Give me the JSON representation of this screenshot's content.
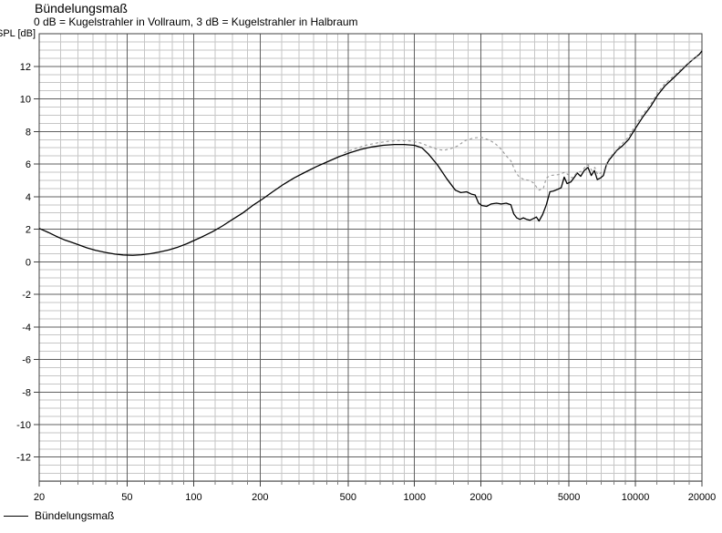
{
  "header": {
    "title": "Bündelungsmaß",
    "subtitle": "0 dB = Kugelstrahler in Vollraum, 3 dB = Kugelstrahler in Halbraum"
  },
  "y_axis_label": "SPL [dB]",
  "legend": {
    "items": [
      {
        "label": "Bündelungsmaß",
        "line_style": "solid",
        "color": "#000000"
      }
    ]
  },
  "colors": {
    "background": "#ffffff",
    "minor_grid": "#c6c6c6",
    "major_grid": "#606060",
    "plot_border": "#404040",
    "text": "#000000",
    "solid_curve": "#000000",
    "dashed_curve": "#999999"
  },
  "chart_data": {
    "type": "line",
    "title": "Bündelungsmaß",
    "subtitle": "0 dB = Kugelstrahler in Vollraum, 3 dB = Kugelstrahler in Halbraum",
    "xlabel": "",
    "ylabel": "SPL [dB]",
    "x_scale": "log",
    "xlim": [
      20,
      20000
    ],
    "ylim": [
      -13.5,
      14
    ],
    "grid": "on",
    "legend_position": "bottom-left",
    "x_tick_labels": [
      "20",
      "50",
      "100",
      "200",
      "500",
      "1000",
      "2000",
      "5000",
      "10000",
      "20000"
    ],
    "x_ticks": [
      20,
      50,
      100,
      200,
      500,
      1000,
      2000,
      5000,
      10000,
      20000
    ],
    "y_ticks": [
      12,
      10,
      8,
      6,
      4,
      2,
      0,
      -2,
      -4,
      -6,
      -8,
      -10,
      -12
    ],
    "y_major_step": 2,
    "y_minor_step": 0.5,
    "series": [
      {
        "name": "Bündelungsmaß",
        "line": "solid",
        "color": "#000000",
        "points": [
          [
            20,
            2.05
          ],
          [
            22,
            1.8
          ],
          [
            24,
            1.55
          ],
          [
            26,
            1.35
          ],
          [
            28,
            1.2
          ],
          [
            30,
            1.05
          ],
          [
            33,
            0.85
          ],
          [
            36,
            0.7
          ],
          [
            40,
            0.57
          ],
          [
            44,
            0.47
          ],
          [
            48,
            0.42
          ],
          [
            53,
            0.4
          ],
          [
            58,
            0.43
          ],
          [
            64,
            0.5
          ],
          [
            70,
            0.6
          ],
          [
            77,
            0.72
          ],
          [
            85,
            0.9
          ],
          [
            93,
            1.1
          ],
          [
            100,
            1.3
          ],
          [
            110,
            1.55
          ],
          [
            122,
            1.85
          ],
          [
            135,
            2.2
          ],
          [
            150,
            2.6
          ],
          [
            167,
            3.0
          ],
          [
            185,
            3.45
          ],
          [
            205,
            3.85
          ],
          [
            228,
            4.3
          ],
          [
            255,
            4.75
          ],
          [
            285,
            5.15
          ],
          [
            320,
            5.5
          ],
          [
            360,
            5.85
          ],
          [
            405,
            6.15
          ],
          [
            455,
            6.45
          ],
          [
            510,
            6.7
          ],
          [
            570,
            6.9
          ],
          [
            640,
            7.05
          ],
          [
            720,
            7.15
          ],
          [
            810,
            7.2
          ],
          [
            900,
            7.2
          ],
          [
            1000,
            7.15
          ],
          [
            1080,
            7.0
          ],
          [
            1160,
            6.6
          ],
          [
            1270,
            5.95
          ],
          [
            1400,
            5.1
          ],
          [
            1530,
            4.4
          ],
          [
            1620,
            4.25
          ],
          [
            1720,
            4.3
          ],
          [
            1810,
            4.15
          ],
          [
            1880,
            4.1
          ],
          [
            1950,
            3.6
          ],
          [
            2020,
            3.45
          ],
          [
            2120,
            3.4
          ],
          [
            2220,
            3.55
          ],
          [
            2350,
            3.6
          ],
          [
            2470,
            3.55
          ],
          [
            2600,
            3.6
          ],
          [
            2730,
            3.5
          ],
          [
            2810,
            2.95
          ],
          [
            2900,
            2.7
          ],
          [
            3000,
            2.6
          ],
          [
            3110,
            2.7
          ],
          [
            3220,
            2.6
          ],
          [
            3330,
            2.55
          ],
          [
            3450,
            2.65
          ],
          [
            3560,
            2.75
          ],
          [
            3660,
            2.5
          ],
          [
            3800,
            2.9
          ],
          [
            3950,
            3.5
          ],
          [
            4100,
            4.3
          ],
          [
            4260,
            4.35
          ],
          [
            4450,
            4.45
          ],
          [
            4610,
            4.55
          ],
          [
            4760,
            5.2
          ],
          [
            4900,
            4.8
          ],
          [
            5100,
            4.9
          ],
          [
            5300,
            5.2
          ],
          [
            5450,
            5.45
          ],
          [
            5650,
            5.25
          ],
          [
            5860,
            5.6
          ],
          [
            6100,
            5.8
          ],
          [
            6310,
            5.3
          ],
          [
            6520,
            5.6
          ],
          [
            6720,
            5.05
          ],
          [
            6950,
            5.15
          ],
          [
            7160,
            5.3
          ],
          [
            7400,
            6.0
          ],
          [
            7650,
            6.3
          ],
          [
            7920,
            6.55
          ],
          [
            8250,
            6.85
          ],
          [
            8700,
            7.1
          ],
          [
            9300,
            7.5
          ],
          [
            10000,
            8.2
          ],
          [
            10800,
            8.9
          ],
          [
            11800,
            9.6
          ],
          [
            12550,
            10.2
          ],
          [
            13600,
            10.8
          ],
          [
            14900,
            11.3
          ],
          [
            16000,
            11.7
          ],
          [
            17100,
            12.1
          ],
          [
            18300,
            12.45
          ],
          [
            19500,
            12.75
          ],
          [
            20000,
            12.95
          ]
        ]
      },
      {
        "name": "(unlabeled dashed variant)",
        "line": "dashed",
        "color": "#999999",
        "points": [
          [
            480,
            6.7
          ],
          [
            540,
            6.95
          ],
          [
            600,
            7.15
          ],
          [
            680,
            7.3
          ],
          [
            760,
            7.4
          ],
          [
            850,
            7.45
          ],
          [
            950,
            7.42
          ],
          [
            1060,
            7.3
          ],
          [
            1160,
            7.1
          ],
          [
            1270,
            6.9
          ],
          [
            1360,
            6.85
          ],
          [
            1460,
            6.95
          ],
          [
            1560,
            7.1
          ],
          [
            1700,
            7.45
          ],
          [
            1850,
            7.6
          ],
          [
            2000,
            7.65
          ],
          [
            2150,
            7.5
          ],
          [
            2300,
            7.3
          ],
          [
            2470,
            6.9
          ],
          [
            2600,
            6.5
          ],
          [
            2730,
            6.2
          ],
          [
            2870,
            5.5
          ],
          [
            2980,
            5.2
          ],
          [
            3130,
            5.05
          ],
          [
            3290,
            5.0
          ],
          [
            3450,
            4.85
          ],
          [
            3560,
            4.6
          ],
          [
            3660,
            4.4
          ],
          [
            3830,
            4.5
          ],
          [
            3950,
            5.15
          ],
          [
            4130,
            5.3
          ],
          [
            4480,
            5.35
          ],
          [
            4800,
            5.5
          ],
          [
            5000,
            5.3
          ],
          [
            5170,
            5.15
          ],
          [
            5450,
            5.5
          ],
          [
            5700,
            5.55
          ],
          [
            5900,
            5.8
          ],
          [
            6100,
            5.95
          ],
          [
            6350,
            5.6
          ],
          [
            6550,
            5.8
          ],
          [
            6750,
            5.35
          ],
          [
            6950,
            5.45
          ],
          [
            7200,
            5.6
          ],
          [
            7450,
            6.15
          ],
          [
            7700,
            6.45
          ],
          [
            7950,
            6.65
          ],
          [
            8300,
            6.95
          ],
          [
            8700,
            7.25
          ],
          [
            9300,
            7.65
          ],
          [
            10000,
            8.4
          ],
          [
            10800,
            9.05
          ],
          [
            11800,
            9.75
          ],
          [
            12550,
            10.35
          ],
          [
            13600,
            10.95
          ],
          [
            14900,
            11.4
          ],
          [
            16000,
            11.8
          ],
          [
            17100,
            12.15
          ],
          [
            18300,
            12.45
          ],
          [
            19000,
            12.65
          ]
        ]
      }
    ]
  }
}
